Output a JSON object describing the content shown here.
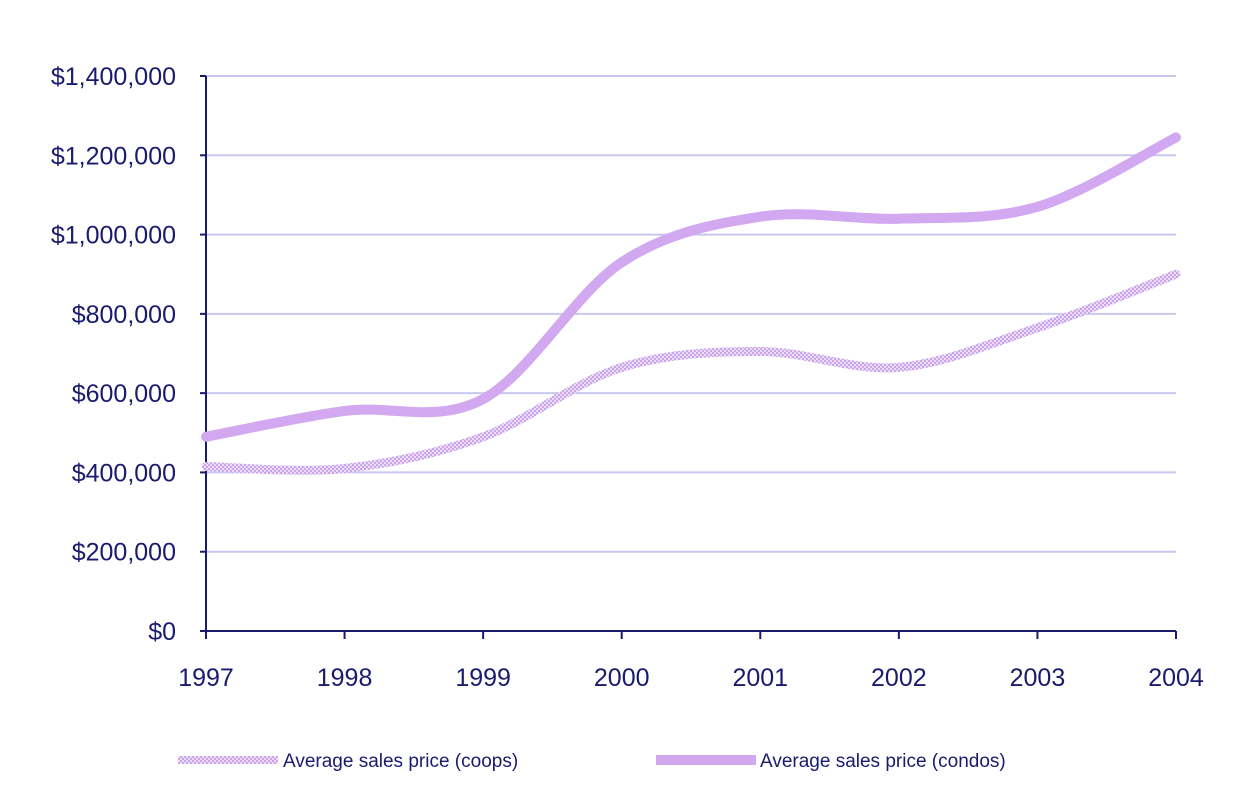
{
  "chart_data": {
    "type": "line",
    "title": "",
    "xlabel": "",
    "ylabel": "",
    "categories": [
      "1997",
      "1998",
      "1999",
      "2000",
      "2001",
      "2002",
      "2003",
      "2004"
    ],
    "ylim": [
      0,
      1400000
    ],
    "yticks": [
      0,
      200000,
      400000,
      600000,
      800000,
      1000000,
      1200000,
      1400000
    ],
    "ytick_labels": [
      "$0",
      "$200,000",
      "$400,000",
      "$600,000",
      "$800,000",
      "$1,000,000",
      "$1,200,000",
      "$1,400,000"
    ],
    "grid": true,
    "legend_position": "bottom",
    "series": [
      {
        "name": "Average sales price (coops)",
        "color": "#e2c8f4",
        "style": "dotted",
        "values": [
          415000,
          410000,
          490000,
          665000,
          705000,
          665000,
          765000,
          900000
        ]
      },
      {
        "name": "Average sales price (condos)",
        "color": "#d2a8f0",
        "style": "solid",
        "values": [
          490000,
          555000,
          585000,
          930000,
          1045000,
          1040000,
          1070000,
          1245000
        ]
      }
    ],
    "colors": {
      "axis": "#1a1a6e",
      "grid": "#c8c8ee",
      "text": "#1a1a6e"
    }
  }
}
